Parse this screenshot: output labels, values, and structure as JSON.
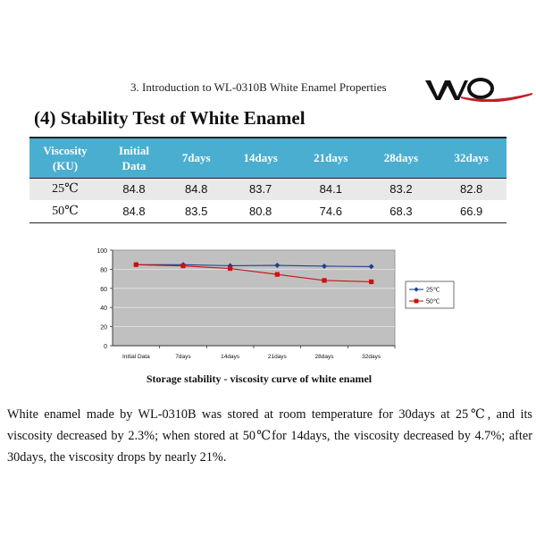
{
  "header": {
    "text": "3. Introduction to WL-0310B White Enamel Properties",
    "logo_text": "WQ",
    "logo_color": "#111111",
    "logo_accent": "#c0202a"
  },
  "section_title": "(4) Stability Test of White Enamel",
  "table": {
    "header_color": "#4aaed0",
    "headers": [
      {
        "l1": "Viscosity",
        "l2": "(KU)"
      },
      {
        "l1": "Initial",
        "l2": "Data"
      },
      {
        "l1": "7days",
        "l2": ""
      },
      {
        "l1": "14days",
        "l2": ""
      },
      {
        "l1": "21days",
        "l2": ""
      },
      {
        "l1": "28days",
        "l2": ""
      },
      {
        "l1": "32days",
        "l2": ""
      }
    ],
    "rows": [
      {
        "label": "25℃",
        "cells": [
          "84.8",
          "84.8",
          "83.7",
          "84.1",
          "83.2",
          "82.8"
        ]
      },
      {
        "label": "50℃",
        "cells": [
          "84.8",
          "83.5",
          "80.8",
          "74.6",
          "68.3",
          "66.9"
        ]
      }
    ]
  },
  "chart_data": {
    "type": "line",
    "title": "",
    "xlabel": "",
    "ylabel": "",
    "categories": [
      "Initial Data",
      "7days",
      "14days",
      "21days",
      "28days",
      "32days"
    ],
    "ylim": [
      0,
      100
    ],
    "yticks": [
      "0",
      "20",
      "40",
      "60",
      "80",
      "100"
    ],
    "grid": true,
    "legend_position": "right",
    "plot_background": "#c0c0c0",
    "series": [
      {
        "name": "25℃",
        "color": "#1f3f8f",
        "marker": "diamond",
        "values": [
          84.8,
          84.8,
          83.7,
          84.1,
          83.2,
          82.8
        ]
      },
      {
        "name": "50℃",
        "color": "#cc1111",
        "marker": "square",
        "values": [
          84.8,
          83.5,
          80.8,
          74.6,
          68.3,
          66.9
        ]
      }
    ]
  },
  "chart_caption": "Storage stability - viscosity curve of white enamel",
  "paragraph": "White enamel made by WL-0310B was stored at room temperature for 30days at 25℃, and its viscosity decreased by 2.3%; when stored at 50℃for 14days, the viscosity decreased by 4.7%; after 30days, the viscosity drops by nearly 21%."
}
